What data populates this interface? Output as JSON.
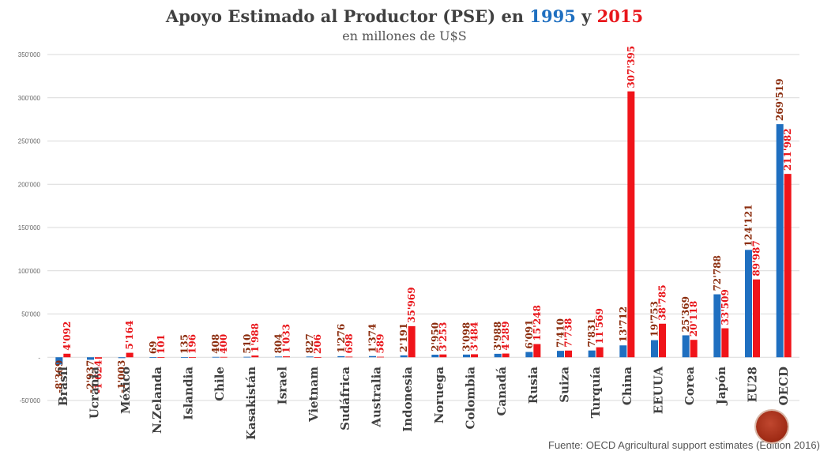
{
  "title": {
    "prefix": "Apoyo Estimado al Productor (PSE) en ",
    "year1": "1995",
    "joiner": " y ",
    "year2": "2015"
  },
  "subtitle": "en millones de U$S",
  "source": "Fuente:  OECD Agricultural support estimates (Edition 2016)",
  "colors": {
    "series_1995": "#1f6fc0",
    "series_2015": "#f0141a",
    "label_1995": "#8b2d0e",
    "label_2015": "#e8161b",
    "grid": "#d9d9d9"
  },
  "logo_icon": "circular-seal-icon",
  "chart_data": {
    "type": "bar",
    "categories": [
      "Brasil",
      "Ucrania",
      "México",
      "N.Zelanda",
      "Islandia",
      "Chile",
      "Kasakistán",
      "Israel",
      "Vietnam",
      "Sudáfrica",
      "Australia",
      "Indonesia",
      "Noruega",
      "Colombia",
      "Canadá",
      "Rusia",
      "Suiza",
      "Turquía",
      "China",
      "EEUUA",
      "Corea",
      "Japón",
      "EU28",
      "OECD"
    ],
    "series": [
      {
        "name": "1995",
        "values": [
          -8369,
          -2937,
          -1003,
          69,
          135,
          408,
          510,
          804,
          827,
          1276,
          1374,
          2191,
          2950,
          3098,
          3988,
          6091,
          7410,
          7831,
          13712,
          19753,
          25369,
          72788,
          124121,
          269519
        ],
        "labels": [
          "-8'369",
          "-2'937",
          "-1'003",
          "69",
          "135",
          "408",
          "510",
          "804",
          "827",
          "1'276",
          "1'374",
          "2'191",
          "2'950",
          "3'098",
          "3'988",
          "6'091",
          "7'410",
          "7'831",
          "13'712",
          "19'753",
          "25'369",
          "72'788",
          "124'121",
          "269'519"
        ]
      },
      {
        "name": "2015",
        "values": [
          4092,
          -1624,
          5164,
          101,
          196,
          400,
          1988,
          1033,
          206,
          698,
          589,
          35969,
          3253,
          3484,
          4289,
          15248,
          7738,
          11569,
          307395,
          38785,
          20118,
          33509,
          89987,
          211982
        ],
        "labels": [
          "4'092",
          "-1'624",
          "5'164",
          "101",
          "196",
          "400",
          "1'988",
          "1'033",
          "206",
          "698",
          "589",
          "35'969",
          "3'253",
          "3'484",
          "4'289",
          "15'248",
          "7'738",
          "11'569",
          "307'395",
          "38'785",
          "20'118",
          "33'509",
          "89'987",
          "211'982"
        ]
      }
    ],
    "ylim": [
      -50000,
      350000
    ],
    "yticks": [
      -50000,
      0,
      50000,
      100000,
      150000,
      200000,
      250000,
      300000,
      350000
    ],
    "ytick_labels": [
      "-50'000",
      "-",
      "50'000",
      "100'000",
      "150'000",
      "200'000",
      "250'000",
      "300'000",
      "350'000"
    ],
    "grid": true,
    "legend": "none"
  }
}
